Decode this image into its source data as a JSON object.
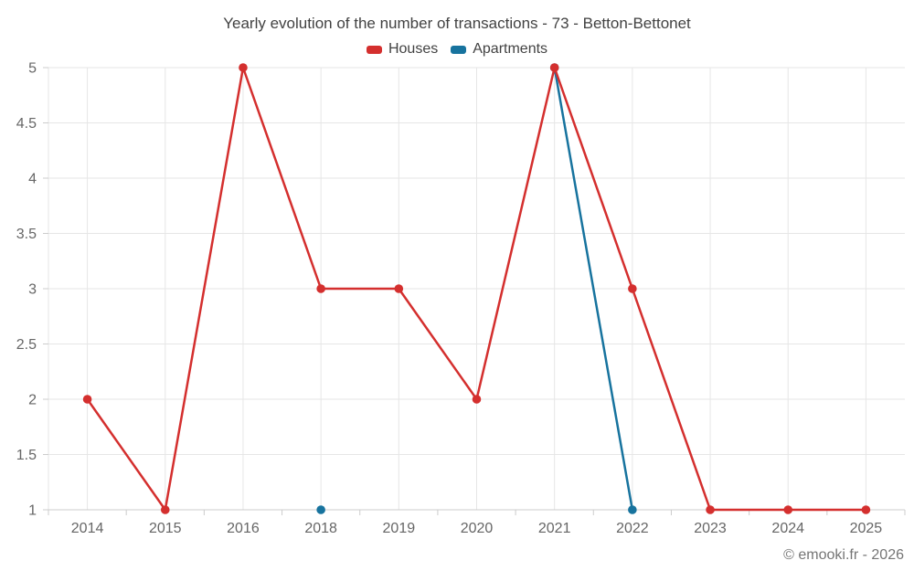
{
  "title": "Yearly evolution of the number of transactions - 73 - Betton-Bettonet",
  "legend": [
    {
      "label": "Houses",
      "color": "#d42f2e"
    },
    {
      "label": "Apartments",
      "color": "#17739e"
    }
  ],
  "footer": {
    "copyright": "© emooki.fr - 2026"
  },
  "colors": {
    "grid": "#e6e6e6",
    "axis": "#cccccc",
    "axis_label": "#666666",
    "title_text": "#424242",
    "credit_text": "#757575"
  },
  "chart_data": {
    "type": "line",
    "title": "Yearly evolution of the number of transactions - 73 - Betton-Bettonet",
    "xlabel": "",
    "ylabel": "",
    "categories": [
      "2014",
      "2015",
      "2016",
      "2018",
      "2019",
      "2020",
      "2021",
      "2022",
      "2023",
      "2024",
      "2025"
    ],
    "series": [
      {
        "name": "Houses",
        "color": "#d42f2e",
        "values": [
          2,
          1,
          5,
          3,
          3,
          2,
          5,
          3,
          1,
          1,
          1
        ]
      },
      {
        "name": "Apartments",
        "color": "#17739e",
        "values": [
          null,
          null,
          null,
          1,
          null,
          null,
          5,
          1,
          null,
          null,
          null
        ]
      }
    ],
    "ylim": [
      1,
      5
    ],
    "y_ticks": [
      1,
      1.5,
      2,
      2.5,
      3,
      3.5,
      4,
      4.5,
      5
    ],
    "grid": true,
    "legend_position": "top",
    "marker": "circle"
  }
}
